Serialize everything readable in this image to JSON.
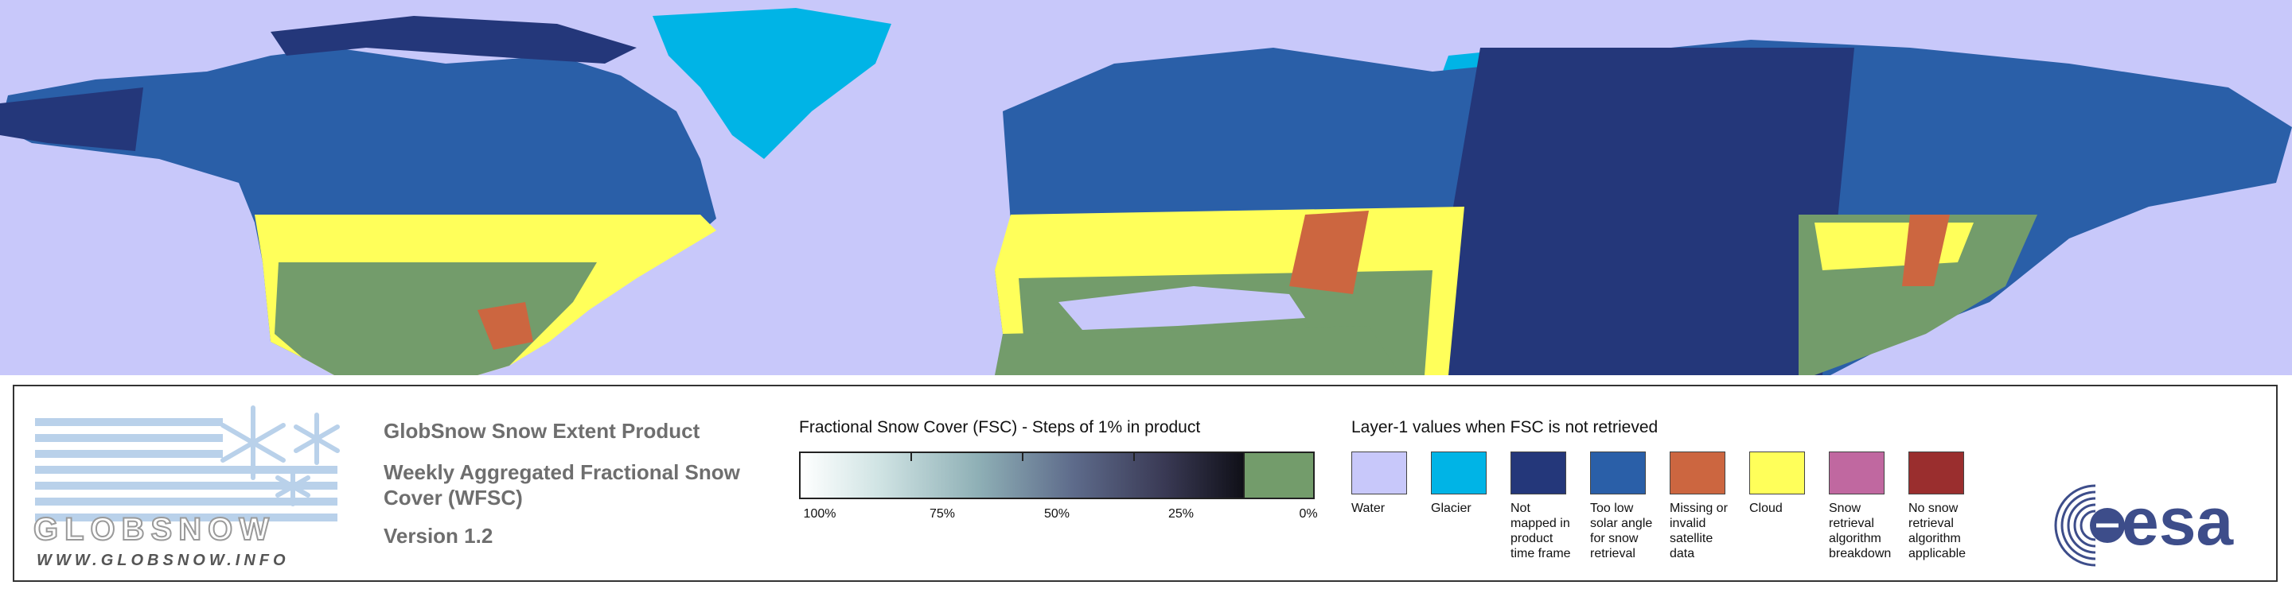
{
  "map": {
    "colors": {
      "water": "#c8c8fa",
      "glacier": "#00b4e6",
      "not_mapped": "#24377a",
      "low_solar": "#2a5fa8",
      "missing": "#cc6640",
      "cloud": "#ffff5a",
      "no_snow": "#739c6b",
      "snow": "#ffffff"
    }
  },
  "legend": {
    "logo": {
      "brand": "GLOBSNOW",
      "url": "WWW.GLOBSNOW.INFO"
    },
    "product": {
      "title": "GlobSnow Snow Extent Product",
      "subtitle_line1": "Weekly Aggregated Fractional Snow",
      "subtitle_line2": "Cover (WFSC)",
      "version": "Version 1.2"
    },
    "fsc": {
      "title": "Fractional Snow Cover (FSC) - Steps of 1% in product",
      "labels": [
        "100%",
        "75%",
        "50%",
        "25%",
        "0%"
      ]
    },
    "layer1": {
      "title": "Layer-1 values when FSC is not retrieved",
      "items": [
        {
          "label": [
            "Water"
          ],
          "color": "#c8c8fa"
        },
        {
          "label": [
            "Glacier"
          ],
          "color": "#00b4e6"
        },
        {
          "label": [
            "Not",
            "mapped in",
            "product",
            "time frame"
          ],
          "color": "#24377a"
        },
        {
          "label": [
            "Too low",
            "solar angle",
            "for snow",
            "retrieval"
          ],
          "color": "#2a5fa8"
        },
        {
          "label": [
            "Missing or",
            "invalid satellite",
            "data"
          ],
          "color": "#cc6640"
        },
        {
          "label": [
            "Cloud"
          ],
          "color": "#ffff5a"
        },
        {
          "label": [
            "Snow retrieval",
            "algorithm",
            "breakdown"
          ],
          "color": "#c068a0"
        },
        {
          "label": [
            "No snow",
            "retrieval",
            "algorithm",
            "applicable"
          ],
          "color": "#9a2e2e"
        }
      ]
    },
    "esa_logo": "esa"
  }
}
